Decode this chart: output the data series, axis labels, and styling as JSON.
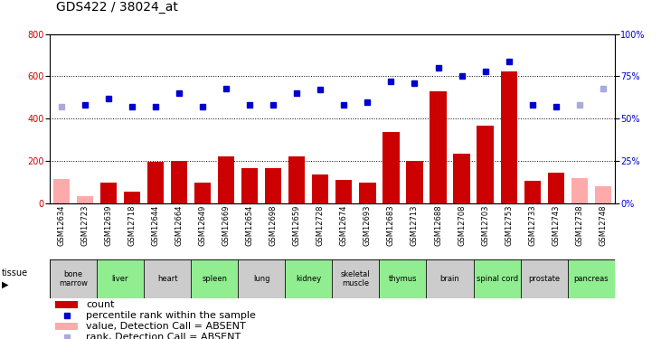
{
  "title": "GDS422 / 38024_at",
  "samples": [
    "GSM12634",
    "GSM12723",
    "GSM12639",
    "GSM12718",
    "GSM12644",
    "GSM12664",
    "GSM12649",
    "GSM12669",
    "GSM12654",
    "GSM12698",
    "GSM12659",
    "GSM12728",
    "GSM12674",
    "GSM12693",
    "GSM12683",
    "GSM12713",
    "GSM12688",
    "GSM12708",
    "GSM12703",
    "GSM12753",
    "GSM12733",
    "GSM12743",
    "GSM12738",
    "GSM12748"
  ],
  "tissues": [
    {
      "name": "bone\nmarrow",
      "start": 0,
      "end": 2,
      "color": "#cccccc"
    },
    {
      "name": "liver",
      "start": 2,
      "end": 4,
      "color": "#90ee90"
    },
    {
      "name": "heart",
      "start": 4,
      "end": 6,
      "color": "#cccccc"
    },
    {
      "name": "spleen",
      "start": 6,
      "end": 8,
      "color": "#90ee90"
    },
    {
      "name": "lung",
      "start": 8,
      "end": 10,
      "color": "#cccccc"
    },
    {
      "name": "kidney",
      "start": 10,
      "end": 12,
      "color": "#90ee90"
    },
    {
      "name": "skeletal\nmuscle",
      "start": 12,
      "end": 14,
      "color": "#cccccc"
    },
    {
      "name": "thymus",
      "start": 14,
      "end": 16,
      "color": "#90ee90"
    },
    {
      "name": "brain",
      "start": 16,
      "end": 18,
      "color": "#cccccc"
    },
    {
      "name": "spinal cord",
      "start": 18,
      "end": 20,
      "color": "#90ee90"
    },
    {
      "name": "prostate",
      "start": 20,
      "end": 22,
      "color": "#cccccc"
    },
    {
      "name": "pancreas",
      "start": 22,
      "end": 24,
      "color": "#90ee90"
    }
  ],
  "bar_values": [
    115,
    35,
    100,
    55,
    195,
    200,
    100,
    220,
    165,
    165,
    220,
    135,
    110,
    100,
    335,
    200,
    530,
    235,
    365,
    625,
    105,
    145,
    120,
    80
  ],
  "bar_absent": [
    true,
    true,
    false,
    false,
    false,
    false,
    false,
    false,
    false,
    false,
    false,
    false,
    false,
    false,
    false,
    false,
    false,
    false,
    false,
    false,
    false,
    false,
    true,
    true
  ],
  "rank_values": [
    57,
    58,
    62,
    57,
    57,
    65,
    57,
    68,
    58,
    58,
    65,
    67,
    58,
    60,
    72,
    71,
    80,
    75,
    78,
    84,
    58,
    57,
    58,
    68
  ],
  "rank_absent": [
    true,
    false,
    false,
    false,
    false,
    false,
    false,
    false,
    false,
    false,
    false,
    false,
    false,
    false,
    false,
    false,
    false,
    false,
    false,
    false,
    false,
    false,
    true,
    true
  ],
  "ylim_left": [
    0,
    800
  ],
  "ylim_right": [
    0,
    100
  ],
  "yticks_left": [
    0,
    200,
    400,
    600,
    800
  ],
  "yticks_right": [
    0,
    25,
    50,
    75,
    100
  ],
  "bar_color_present": "#cc0000",
  "bar_color_absent": "#ffaaaa",
  "rank_color_present": "#0000cc",
  "rank_color_absent": "#aaaadd",
  "title_fontsize": 10,
  "tick_fontsize": 7,
  "legend_fontsize": 8
}
